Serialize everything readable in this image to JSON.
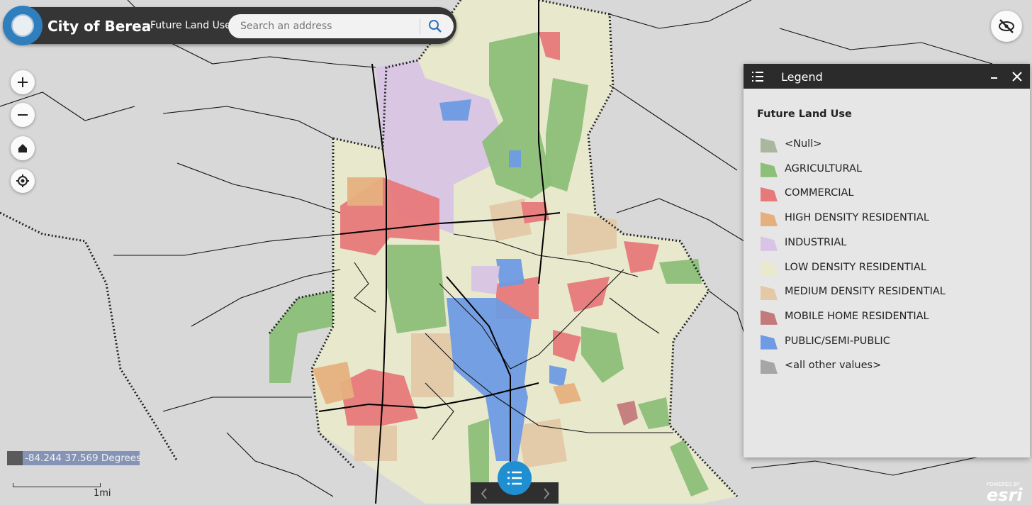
{
  "header": {
    "title": "City of Berea",
    "subtitle": "Future Land Use",
    "search_placeholder": "Search an address"
  },
  "legend": {
    "title": "Legend",
    "layer": "Future Land Use",
    "items": [
      {
        "label": "<Null>",
        "color": "#a9b79f"
      },
      {
        "label": "AGRICULTURAL",
        "color": "#8cbf78"
      },
      {
        "label": "COMMERCIAL",
        "color": "#e8797a"
      },
      {
        "label": "HIGH DENSITY RESIDENTIAL",
        "color": "#e6b07e"
      },
      {
        "label": "INDUSTRIAL",
        "color": "#d8c4e4"
      },
      {
        "label": "LOW DENSITY RESIDENTIAL",
        "color": "#e9e9cb"
      },
      {
        "label": "MEDIUM DENSITY RESIDENTIAL",
        "color": "#e3c9a6"
      },
      {
        "label": "MOBILE HOME RESIDENTIAL",
        "color": "#c47a7a"
      },
      {
        "label": "PUBLIC/SEMI-PUBLIC",
        "color": "#6e9be3"
      },
      {
        "label": "<all other values>",
        "color": "#a6a6a6"
      }
    ]
  },
  "coordinates": "-84.244 37.569 Degrees",
  "scale": "1mi",
  "attribution": {
    "powered": "POWERED BY",
    "brand": "esri"
  }
}
